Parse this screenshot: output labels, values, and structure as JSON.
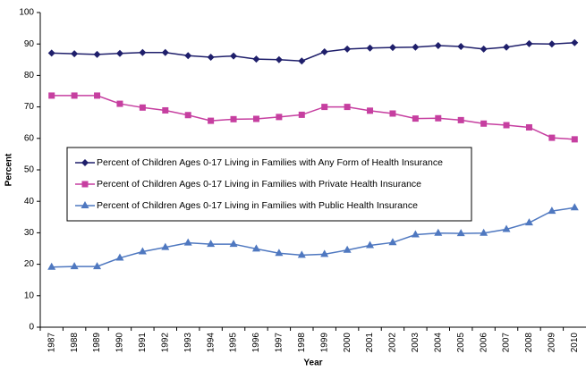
{
  "chart_data": {
    "type": "line",
    "x_label": "Year",
    "y_label": "Percent",
    "categories": [
      "1987",
      "1988",
      "1989",
      "1990",
      "1991",
      "1992",
      "1993",
      "1994",
      "1995",
      "1996",
      "1997",
      "1998",
      "1999",
      "2000",
      "2001",
      "2002",
      "2003",
      "2004",
      "2005",
      "2006",
      "2007",
      "2008",
      "2009",
      "2010"
    ],
    "series": [
      {
        "name": "Percent of Children Ages 0-17 Living in Families with Any Form of Health Insurance",
        "color": "#1f1f6b",
        "marker": "diamond",
        "values": [
          87.1,
          86.9,
          86.7,
          87.0,
          87.3,
          87.3,
          86.3,
          85.8,
          86.2,
          85.2,
          85.0,
          84.6,
          87.5,
          88.4,
          88.7,
          88.9,
          89.0,
          89.5,
          89.2,
          88.4,
          89.0,
          90.1,
          90.0,
          90.4
        ]
      },
      {
        "name": "Percent of Children Ages 0-17 Living in Families with Private Health Insurance",
        "color": "#c63fa0",
        "marker": "square",
        "values": [
          73.6,
          73.6,
          73.6,
          71.0,
          69.8,
          68.9,
          67.4,
          65.6,
          66.1,
          66.2,
          66.8,
          67.5,
          70.0,
          70.0,
          68.8,
          67.9,
          66.3,
          66.4,
          65.8,
          64.7,
          64.2,
          63.5,
          60.2,
          59.7
        ]
      },
      {
        "name": "Percent of Children Ages 0-17 Living in Families with Public Health Insurance",
        "color": "#4f78c0",
        "marker": "triangle",
        "values": [
          19.1,
          19.3,
          19.3,
          22.0,
          24.0,
          25.4,
          26.8,
          26.4,
          26.4,
          24.9,
          23.5,
          22.9,
          23.2,
          24.5,
          26.0,
          26.9,
          29.4,
          29.9,
          29.8,
          29.9,
          31.1,
          33.2,
          36.9,
          38.0
        ]
      }
    ],
    "ylim": [
      0,
      100
    ],
    "yticks": [
      0,
      10,
      20,
      30,
      40,
      50,
      60,
      70,
      80,
      90,
      100
    ],
    "grid": false
  }
}
